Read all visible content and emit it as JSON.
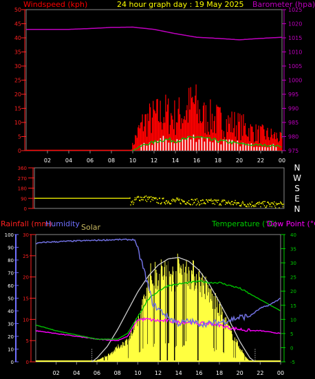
{
  "header": {
    "left_label": "Windspeed (kph)",
    "center_title": "24 hour graph day : 19 May 2025",
    "right_label": "Barometer (hpa)"
  },
  "colors": {
    "wind": "#ff0000",
    "gust": "#ffffff",
    "avg": "#00c000",
    "baro": "#c000c0",
    "dir": "#ffff00",
    "temp": "#00c000",
    "dew": "#ff00ff",
    "humidity": "#7070e0",
    "solar_theoretical": "#cccccc",
    "solar": "#ffff40",
    "rain": "#ff0000"
  },
  "chart_data": [
    {
      "type": "line",
      "name": "wind-baro",
      "x_ticks": [
        "02",
        "04",
        "06",
        "08",
        "10",
        "12",
        "14",
        "16",
        "18",
        "20",
        "22",
        "00"
      ],
      "y_left_ticks": [
        "0",
        "5",
        "10",
        "15",
        "20",
        "25",
        "30",
        "35",
        "40",
        "45",
        "50"
      ],
      "y_right_ticks": [
        "975",
        "980",
        "985",
        "990",
        "995",
        "1000",
        "1005",
        "1010",
        "1015",
        "1020",
        "1025"
      ],
      "ylim_left": [
        0,
        50
      ],
      "ylim_right": [
        975,
        1025
      ],
      "series": [
        {
          "key": "barometer",
          "hours": [
            0,
            2,
            4,
            6,
            8,
            10,
            12,
            14,
            16,
            18,
            20,
            22,
            24
          ],
          "values": [
            1018,
            1018,
            1018,
            1018.3,
            1018.7,
            1018.8,
            1018,
            1016.5,
            1015.2,
            1014.8,
            1014.3,
            1014.8,
            1015.2
          ]
        },
        {
          "key": "wind_peak",
          "hours": [
            0,
            9.8,
            10.3,
            11,
            12,
            13,
            14,
            15,
            15.7,
            16.5,
            17.5,
            18.5,
            19.5,
            20.5,
            21.5,
            22.5,
            23.5,
            24
          ],
          "values": [
            0,
            0,
            8,
            16,
            19,
            21,
            19,
            22,
            27,
            19,
            18,
            16,
            15,
            13,
            10,
            9,
            8,
            6
          ]
        },
        {
          "key": "wind_avg",
          "hours": [
            0,
            10,
            11,
            12,
            13,
            14,
            15,
            16,
            17,
            18,
            19,
            20,
            21,
            22,
            23,
            24
          ],
          "values": [
            0,
            0,
            2,
            3,
            4,
            3.5,
            4,
            5,
            4,
            3.5,
            3,
            2.5,
            2,
            2,
            1.8,
            1.5
          ]
        }
      ]
    },
    {
      "type": "scatter",
      "name": "wind-direction",
      "x_ticks": [
        "02",
        "04",
        "06",
        "08",
        "10",
        "12",
        "14",
        "16",
        "18",
        "20",
        "22",
        "00"
      ],
      "y_ticks": [
        "0",
        "90",
        "180",
        "270",
        "360"
      ],
      "dir_labels": [
        "N",
        "W",
        "S",
        "E",
        "N"
      ],
      "ylim": [
        0,
        360
      ],
      "series": [
        {
          "key": "direction",
          "hours": [
            0,
            9.2,
            9.3,
            10,
            11,
            12,
            14,
            16,
            18,
            20,
            22,
            24
          ],
          "values": [
            90,
            90,
            45,
            100,
            90,
            70,
            70,
            60,
            60,
            45,
            40,
            35
          ]
        }
      ]
    },
    {
      "type": "line",
      "name": "temp-hum-solar",
      "header": {
        "rain_label": "Rainfall (mm)",
        "humidity_label": "Humidity",
        "solar_label": "Solar",
        "temp_label": "Temperature (°C)",
        "dew_label": "Dew Point (°C)"
      },
      "x_ticks": [
        "02",
        "04",
        "06",
        "08",
        "10",
        "12",
        "14",
        "16",
        "18",
        "20",
        "22",
        "00"
      ],
      "y_hum_ticks": [
        "0",
        "10",
        "20",
        "30",
        "40",
        "50",
        "60",
        "70",
        "80",
        "90",
        "100"
      ],
      "y_rain_ticks": [
        "0",
        "5",
        "10",
        "15",
        "20",
        "25",
        "30"
      ],
      "y_temp_ticks": [
        "-5",
        "0",
        "5",
        "10",
        "15",
        "20",
        "25",
        "30",
        "35",
        "40"
      ],
      "ylim_humidity": [
        0,
        100
      ],
      "ylim_rain": [
        0,
        30
      ],
      "ylim_temp": [
        -5,
        40
      ],
      "series": [
        {
          "key": "humidity",
          "hours": [
            0,
            1,
            4,
            8,
            9.7,
            10.5,
            11.5,
            13,
            14,
            15,
            16,
            17,
            18,
            19,
            20,
            21,
            22,
            23,
            24
          ],
          "values": [
            93,
            94,
            95,
            96,
            96,
            75,
            45,
            35,
            30,
            32,
            30,
            30,
            31,
            33,
            35,
            36,
            42,
            45,
            50
          ]
        },
        {
          "key": "temperature",
          "hours": [
            0,
            2,
            4,
            6,
            8,
            9,
            10,
            11,
            12,
            13,
            14,
            15,
            16,
            17,
            18,
            19,
            20,
            21,
            22,
            23,
            24
          ],
          "values": [
            8,
            6,
            4.5,
            3,
            3,
            5,
            11,
            17,
            20,
            22,
            22.5,
            23,
            23.5,
            23,
            23,
            22,
            21,
            19,
            17,
            15,
            13
          ]
        },
        {
          "key": "dew_point",
          "hours": [
            0,
            2,
            4,
            6,
            8,
            9,
            10,
            11,
            12,
            13,
            14,
            15,
            16,
            17,
            18,
            19,
            20,
            21,
            22,
            23,
            24
          ],
          "values": [
            6,
            5,
            4,
            3,
            2.5,
            4,
            10,
            10,
            9.5,
            9.5,
            9,
            9,
            8.5,
            8.5,
            8,
            7,
            6.5,
            6,
            6,
            5.5,
            5
          ]
        },
        {
          "key": "solar_theoretical",
          "hours": [
            5.5,
            6,
            7,
            8,
            9,
            10,
            11,
            12,
            13,
            14,
            15,
            16,
            17,
            18,
            19,
            20,
            21,
            21.5
          ],
          "values": [
            0,
            3,
            12,
            25,
            40,
            55,
            67,
            76,
            81,
            82,
            79,
            72,
            61,
            47,
            32,
            16,
            3,
            0
          ]
        },
        {
          "key": "solar",
          "hours": [
            5.5,
            6.5,
            7.5,
            8,
            8.5,
            9,
            9.5,
            10,
            10.5,
            11,
            12,
            13,
            13.5,
            14,
            15,
            16,
            17,
            18,
            19,
            20,
            20.5,
            21
          ],
          "values": [
            0,
            3,
            8,
            12,
            15,
            18,
            25,
            35,
            48,
            70,
            74,
            78,
            70,
            80,
            76,
            70,
            58,
            44,
            27,
            12,
            5,
            0
          ]
        }
      ]
    }
  ]
}
